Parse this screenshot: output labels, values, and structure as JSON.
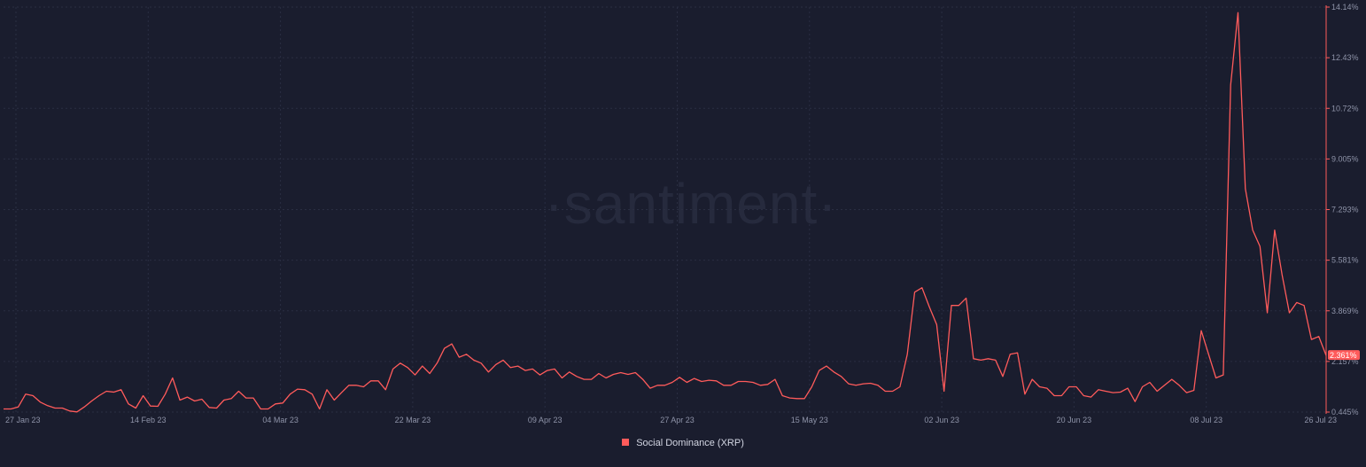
{
  "watermark": "·santiment·",
  "colors": {
    "background": "#1a1d2e",
    "series": "#ff5b5b",
    "grid": "#2a2e42",
    "axis": "#8e93a8"
  },
  "chart_data": {
    "type": "line",
    "title": "",
    "xlabel": "",
    "ylabel": "",
    "x_ticks": [
      "27 Jan 23",
      "14 Feb 23",
      "04 Mar 23",
      "22 Mar 23",
      "09 Apr 23",
      "27 Apr 23",
      "15 May 23",
      "02 Jun 23",
      "20 Jun 23",
      "08 Jul 23",
      "26 Jul 23"
    ],
    "y_ticks": [
      "0.445%",
      "2.157%",
      "3.869%",
      "5.581%",
      "7.293%",
      "9.005%",
      "10.72%",
      "12.43%",
      "14.14%"
    ],
    "ylim": [
      0.445,
      14.14
    ],
    "xlim": [
      "2023-01-27",
      "2023-07-26"
    ],
    "grid": true,
    "legend_position": "bottom",
    "current_value_label": "2.361%",
    "series": [
      {
        "name": "Social Dominance (XRP)",
        "x": [
          "2023-01-27",
          "2023-01-28",
          "2023-01-29",
          "2023-01-30",
          "2023-01-31",
          "2023-02-01",
          "2023-02-02",
          "2023-02-03",
          "2023-02-04",
          "2023-02-05",
          "2023-02-06",
          "2023-02-07",
          "2023-02-08",
          "2023-02-09",
          "2023-02-10",
          "2023-02-11",
          "2023-02-12",
          "2023-02-13",
          "2023-02-14",
          "2023-02-15",
          "2023-02-16",
          "2023-02-17",
          "2023-02-18",
          "2023-02-19",
          "2023-02-20",
          "2023-02-21",
          "2023-02-22",
          "2023-02-23",
          "2023-02-24",
          "2023-02-25",
          "2023-02-26",
          "2023-02-27",
          "2023-02-28",
          "2023-03-01",
          "2023-03-02",
          "2023-03-03",
          "2023-03-04",
          "2023-03-05",
          "2023-03-06",
          "2023-03-07",
          "2023-03-08",
          "2023-03-09",
          "2023-03-10",
          "2023-03-11",
          "2023-03-12",
          "2023-03-13",
          "2023-03-14",
          "2023-03-15",
          "2023-03-16",
          "2023-03-17",
          "2023-03-18",
          "2023-03-19",
          "2023-03-20",
          "2023-03-21",
          "2023-03-22",
          "2023-03-23",
          "2023-03-24",
          "2023-03-25",
          "2023-03-26",
          "2023-03-27",
          "2023-03-28",
          "2023-03-29",
          "2023-03-30",
          "2023-03-31",
          "2023-04-01",
          "2023-04-02",
          "2023-04-03",
          "2023-04-04",
          "2023-04-05",
          "2023-04-06",
          "2023-04-07",
          "2023-04-08",
          "2023-04-09",
          "2023-04-10",
          "2023-04-11",
          "2023-04-12",
          "2023-04-13",
          "2023-04-14",
          "2023-04-15",
          "2023-04-16",
          "2023-04-17",
          "2023-04-18",
          "2023-04-19",
          "2023-04-20",
          "2023-04-21",
          "2023-04-22",
          "2023-04-23",
          "2023-04-24",
          "2023-04-25",
          "2023-04-26",
          "2023-04-27",
          "2023-04-28",
          "2023-04-29",
          "2023-04-30",
          "2023-05-01",
          "2023-05-02",
          "2023-05-03",
          "2023-05-04",
          "2023-05-05",
          "2023-05-06",
          "2023-05-07",
          "2023-05-08",
          "2023-05-09",
          "2023-05-10",
          "2023-05-11",
          "2023-05-12",
          "2023-05-13",
          "2023-05-14",
          "2023-05-15",
          "2023-05-16",
          "2023-05-17",
          "2023-05-18",
          "2023-05-19",
          "2023-05-20",
          "2023-05-21",
          "2023-05-22",
          "2023-05-23",
          "2023-05-24",
          "2023-05-25",
          "2023-05-26",
          "2023-05-27",
          "2023-05-28",
          "2023-05-29",
          "2023-05-30",
          "2023-05-31",
          "2023-06-01",
          "2023-06-02",
          "2023-06-03",
          "2023-06-04",
          "2023-06-05",
          "2023-06-06",
          "2023-06-07",
          "2023-06-08",
          "2023-06-09",
          "2023-06-10",
          "2023-06-11",
          "2023-06-12",
          "2023-06-13",
          "2023-06-14",
          "2023-06-15",
          "2023-06-16",
          "2023-06-17",
          "2023-06-18",
          "2023-06-19",
          "2023-06-20",
          "2023-06-21",
          "2023-06-22",
          "2023-06-23",
          "2023-06-24",
          "2023-06-25",
          "2023-06-26",
          "2023-06-27",
          "2023-06-28",
          "2023-06-29",
          "2023-06-30",
          "2023-07-01",
          "2023-07-02",
          "2023-07-03",
          "2023-07-04",
          "2023-07-05",
          "2023-07-06",
          "2023-07-07",
          "2023-07-08",
          "2023-07-09",
          "2023-07-10",
          "2023-07-11",
          "2023-07-12",
          "2023-07-13",
          "2023-07-14",
          "2023-07-15",
          "2023-07-16",
          "2023-07-17",
          "2023-07-18",
          "2023-07-19",
          "2023-07-20",
          "2023-07-21",
          "2023-07-22",
          "2023-07-23",
          "2023-07-24",
          "2023-07-25",
          "2023-07-26"
        ],
        "values": [
          0.55,
          0.55,
          0.62,
          1.05,
          1.0,
          0.78,
          0.66,
          0.58,
          0.58,
          0.48,
          0.45,
          0.62,
          0.82,
          1.0,
          1.15,
          1.12,
          1.2,
          0.72,
          0.58,
          1.0,
          0.65,
          0.64,
          1.05,
          1.6,
          0.85,
          0.95,
          0.82,
          0.88,
          0.6,
          0.58,
          0.85,
          0.9,
          1.15,
          0.92,
          0.92,
          0.55,
          0.55,
          0.72,
          0.75,
          1.05,
          1.22,
          1.2,
          1.05,
          0.55,
          1.2,
          0.85,
          1.1,
          1.35,
          1.35,
          1.3,
          1.5,
          1.5,
          1.2,
          1.9,
          2.1,
          1.95,
          1.7,
          2.0,
          1.75,
          2.1,
          2.6,
          2.75,
          2.3,
          2.4,
          2.2,
          2.1,
          1.8,
          2.05,
          2.2,
          1.95,
          2.0,
          1.85,
          1.9,
          1.7,
          1.85,
          1.9,
          1.6,
          1.8,
          1.65,
          1.55,
          1.55,
          1.75,
          1.6,
          1.72,
          1.78,
          1.72,
          1.78,
          1.55,
          1.25,
          1.35,
          1.35,
          1.45,
          1.62,
          1.45,
          1.58,
          1.48,
          1.52,
          1.5,
          1.35,
          1.35,
          1.48,
          1.48,
          1.45,
          1.35,
          1.38,
          1.55,
          1.0,
          0.92,
          0.9,
          0.9,
          1.3,
          1.85,
          2.0,
          1.8,
          1.65,
          1.4,
          1.35,
          1.4,
          1.42,
          1.35,
          1.15,
          1.15,
          1.3,
          2.4,
          4.5,
          4.65,
          4.0,
          3.4,
          1.15,
          4.05,
          4.05,
          4.3,
          2.25,
          2.2,
          2.25,
          2.2,
          1.65,
          2.4,
          2.45,
          1.05,
          1.55,
          1.3,
          1.25,
          1.0,
          1.0,
          1.3,
          1.3,
          1.0,
          0.95,
          1.2,
          1.15,
          1.1,
          1.12,
          1.25,
          0.8,
          1.3,
          1.45,
          1.15,
          1.35,
          1.55,
          1.35,
          1.1,
          1.18,
          3.2,
          2.4,
          1.6,
          1.7,
          11.5,
          13.95,
          8.0,
          6.6,
          6.05,
          3.8,
          6.6,
          5.1,
          3.8,
          4.15,
          4.05,
          2.9,
          3.0,
          2.361
        ]
      }
    ]
  }
}
